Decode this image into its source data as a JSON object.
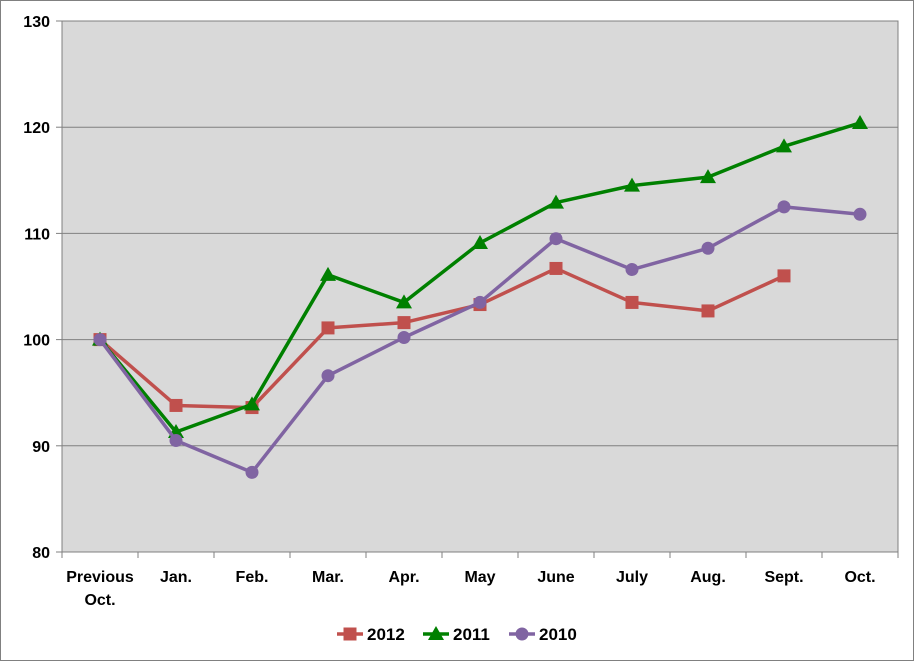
{
  "chart_data": {
    "type": "line",
    "categories": [
      [
        "Previous",
        "Oct."
      ],
      [
        "Jan."
      ],
      [
        "Feb."
      ],
      [
        "Mar."
      ],
      [
        "Apr."
      ],
      [
        "May"
      ],
      [
        "June"
      ],
      [
        "July"
      ],
      [
        "Aug."
      ],
      [
        "Sept."
      ],
      [
        "Oct."
      ]
    ],
    "ylim": [
      80,
      130
    ],
    "yticks": [
      80,
      90,
      100,
      110,
      120,
      130
    ],
    "grid": true,
    "plot_background": "#d9d9d9",
    "legend_position": "bottom",
    "series": [
      {
        "name": "2012",
        "color": "#c0504d",
        "marker": "square",
        "values": [
          100,
          93.8,
          93.6,
          101.1,
          101.6,
          103.3,
          106.7,
          103.5,
          102.7,
          106.0,
          null
        ]
      },
      {
        "name": "2011",
        "color": "#008000",
        "marker": "triangle",
        "values": [
          100,
          91.3,
          93.9,
          106.1,
          103.5,
          109.1,
          112.9,
          114.5,
          115.3,
          118.2,
          120.4
        ]
      },
      {
        "name": "2010",
        "color": "#8064a2",
        "marker": "circle",
        "values": [
          100,
          90.5,
          87.5,
          96.6,
          100.2,
          103.5,
          109.5,
          106.6,
          108.6,
          112.5,
          111.8
        ]
      }
    ]
  }
}
